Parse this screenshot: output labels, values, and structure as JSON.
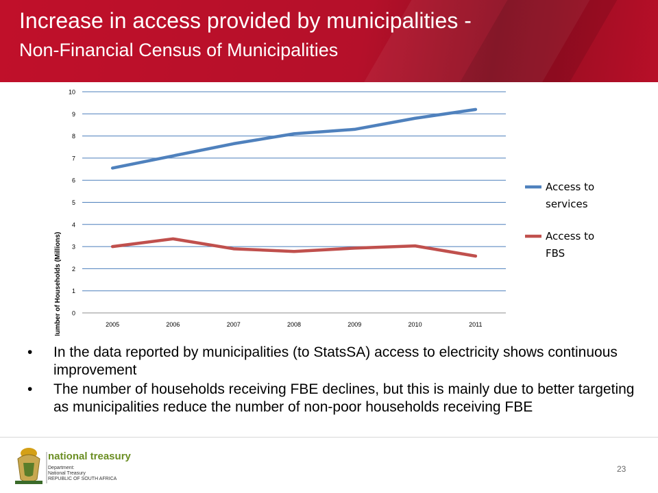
{
  "header": {
    "title_line1": "Increase in access provided by  municipalities -",
    "title_line2": "Non-Financial Census of Municipalities",
    "background_color": "#b5102a"
  },
  "chart_data": {
    "type": "line",
    "title": "",
    "xlabel": "",
    "ylabel": "Number of Households  (Millions)",
    "categories": [
      "2005",
      "2006",
      "2007",
      "2008",
      "2009",
      "2010",
      "2011"
    ],
    "ylim": [
      0,
      10
    ],
    "yticks": [
      0,
      1,
      2,
      3,
      4,
      5,
      6,
      7,
      8,
      9,
      10
    ],
    "grid": true,
    "legend_position": "right",
    "series": [
      {
        "name": "Access to services",
        "color": "#4f81bd",
        "values": [
          6.55,
          7.1,
          7.65,
          8.1,
          8.3,
          8.8,
          9.2
        ]
      },
      {
        "name": "Access to FBS",
        "color": "#c0504d",
        "values": [
          3.0,
          3.35,
          2.9,
          2.78,
          2.93,
          3.03,
          2.57
        ]
      }
    ]
  },
  "bullets": [
    "In the data reported by municipalities (to StatsSA) access to electricity shows continuous improvement",
    "The number of households receiving FBE declines, but this is mainly due to better targeting as municipalities reduce the number of non-poor households receiving FBE"
  ],
  "bullet_symbol": "•",
  "footer": {
    "logo_name": "national treasury",
    "logo_sub": "Department:\nNational Treasury\nREPUBLIC OF SOUTH AFRICA",
    "page_number": "23"
  }
}
